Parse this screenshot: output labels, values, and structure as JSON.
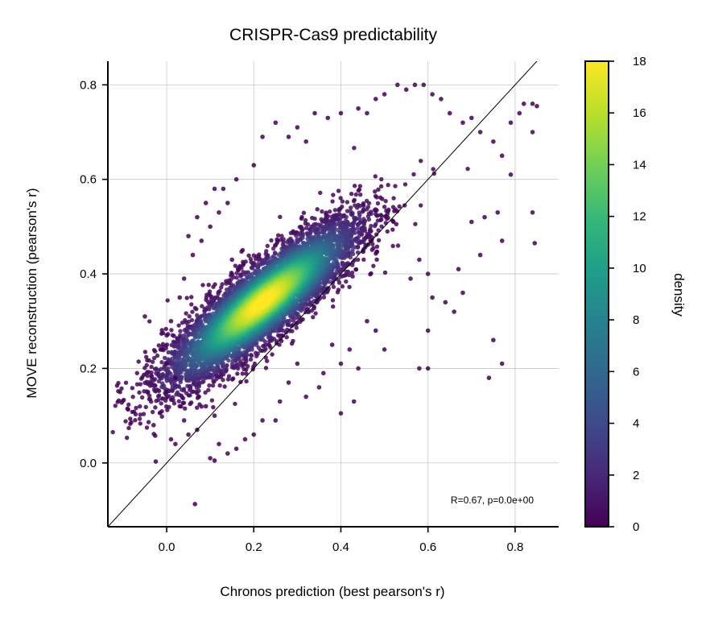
{
  "chart_data": {
    "type": "scatter",
    "title": "CRISPR-Cas9 predictability",
    "xlabel": "Chronos prediction (best pearson's r)",
    "ylabel": "MOVE reconstruction (pearson's r)",
    "xlim": [
      -0.135,
      0.9
    ],
    "ylim": [
      -0.135,
      0.85
    ],
    "xticks": [
      0.0,
      0.2,
      0.4,
      0.6,
      0.8
    ],
    "xtick_labels": [
      "0.0",
      "0.2",
      "0.4",
      "0.6",
      "0.8"
    ],
    "yticks": [
      0.0,
      0.2,
      0.4,
      0.6,
      0.8
    ],
    "ytick_labels": [
      "0.0",
      "0.2",
      "0.4",
      "0.6",
      "0.8"
    ],
    "grid": true,
    "identity_line": true,
    "annotation": "R=0.67, p=0.0e+00",
    "colorbar": {
      "label": "density",
      "range": [
        0,
        18
      ],
      "ticks": [
        0,
        2,
        4,
        6,
        8,
        10,
        12,
        14,
        16,
        18
      ],
      "tick_labels": [
        "0",
        "2",
        "4",
        "6",
        "8",
        "10",
        "12",
        "14",
        "16",
        "18"
      ],
      "colormap": "viridis"
    },
    "density_center": [
      0.22,
      0.34
    ],
    "correlation": 0.67,
    "points": [
      [
        -0.09,
        0.115
      ],
      [
        -0.05,
        0.31
      ],
      [
        -0.03,
        0.08
      ],
      [
        -0.025,
        0.003
      ],
      [
        0.0,
        0.15
      ],
      [
        0.01,
        0.05
      ],
      [
        0.02,
        0.04
      ],
      [
        0.065,
        -0.087
      ],
      [
        0.1,
        0.01
      ],
      [
        0.11,
        0.005
      ],
      [
        0.15,
        0.43
      ],
      [
        0.14,
        0.55
      ],
      [
        0.13,
        0.58
      ],
      [
        0.16,
        0.6
      ],
      [
        0.2,
        0.63
      ],
      [
        0.22,
        0.69
      ],
      [
        0.25,
        0.72
      ],
      [
        0.28,
        0.69
      ],
      [
        0.3,
        0.71
      ],
      [
        0.32,
        0.68
      ],
      [
        0.34,
        0.74
      ],
      [
        0.37,
        0.73
      ],
      [
        0.4,
        0.74
      ],
      [
        0.44,
        0.75
      ],
      [
        0.46,
        0.74
      ],
      [
        0.48,
        0.77
      ],
      [
        0.5,
        0.78
      ],
      [
        0.53,
        0.8
      ],
      [
        0.55,
        0.79
      ],
      [
        0.57,
        0.8
      ],
      [
        0.59,
        0.8
      ],
      [
        0.61,
        0.78
      ],
      [
        0.63,
        0.77
      ],
      [
        0.65,
        0.74
      ],
      [
        0.68,
        0.72
      ],
      [
        0.7,
        0.73
      ],
      [
        0.72,
        0.7
      ],
      [
        0.75,
        0.68
      ],
      [
        0.77,
        0.65
      ],
      [
        0.79,
        0.72
      ],
      [
        0.82,
        0.76
      ],
      [
        0.84,
        0.76
      ],
      [
        0.85,
        0.755
      ],
      [
        0.81,
        0.74
      ],
      [
        0.84,
        0.53
      ],
      [
        0.845,
        0.465
      ],
      [
        0.84,
        0.7
      ],
      [
        0.79,
        0.61
      ],
      [
        0.76,
        0.53
      ],
      [
        0.77,
        0.47
      ],
      [
        0.73,
        0.52
      ],
      [
        0.72,
        0.44
      ],
      [
        0.7,
        0.51
      ],
      [
        0.67,
        0.41
      ],
      [
        0.68,
        0.36
      ],
      [
        0.66,
        0.32
      ],
      [
        0.64,
        0.34
      ],
      [
        0.61,
        0.35
      ],
      [
        0.6,
        0.4
      ],
      [
        0.58,
        0.43
      ],
      [
        0.56,
        0.39
      ],
      [
        0.6,
        0.28
      ],
      [
        0.74,
        0.18
      ],
      [
        0.75,
        0.26
      ],
      [
        0.77,
        0.21
      ],
      [
        0.58,
        0.2
      ],
      [
        0.6,
        0.2
      ],
      [
        0.5,
        0.24
      ],
      [
        0.48,
        0.28
      ],
      [
        0.46,
        0.3
      ],
      [
        0.44,
        0.2
      ],
      [
        0.42,
        0.24
      ],
      [
        0.4,
        0.21
      ],
      [
        0.38,
        0.25
      ],
      [
        0.36,
        0.19
      ],
      [
        0.3,
        0.21
      ],
      [
        0.28,
        0.17
      ],
      [
        0.26,
        0.13
      ],
      [
        0.25,
        0.09
      ],
      [
        0.32,
        0.14
      ],
      [
        0.4,
        0.105
      ],
      [
        0.43,
        0.13
      ],
      [
        0.35,
        0.16
      ],
      [
        0.22,
        0.09
      ],
      [
        0.2,
        0.06
      ],
      [
        0.18,
        0.05
      ],
      [
        0.16,
        0.03
      ],
      [
        0.14,
        0.02
      ],
      [
        0.12,
        0.04
      ],
      [
        0.11,
        0.1
      ],
      [
        0.09,
        0.12
      ],
      [
        0.07,
        0.07
      ],
      [
        0.05,
        0.06
      ],
      [
        0.04,
        0.09
      ],
      [
        0.03,
        0.12
      ],
      [
        0.02,
        0.18
      ],
      [
        0.0,
        0.21
      ],
      [
        -0.01,
        0.24
      ],
      [
        0.0,
        0.27
      ],
      [
        0.01,
        0.3
      ],
      [
        0.03,
        0.35
      ],
      [
        0.04,
        0.39
      ],
      [
        0.06,
        0.44
      ],
      [
        0.08,
        0.47
      ],
      [
        0.1,
        0.5
      ],
      [
        0.12,
        0.53
      ],
      [
        0.05,
        0.48
      ],
      [
        0.07,
        0.52
      ],
      [
        0.09,
        0.55
      ],
      [
        0.11,
        0.58
      ]
    ]
  }
}
